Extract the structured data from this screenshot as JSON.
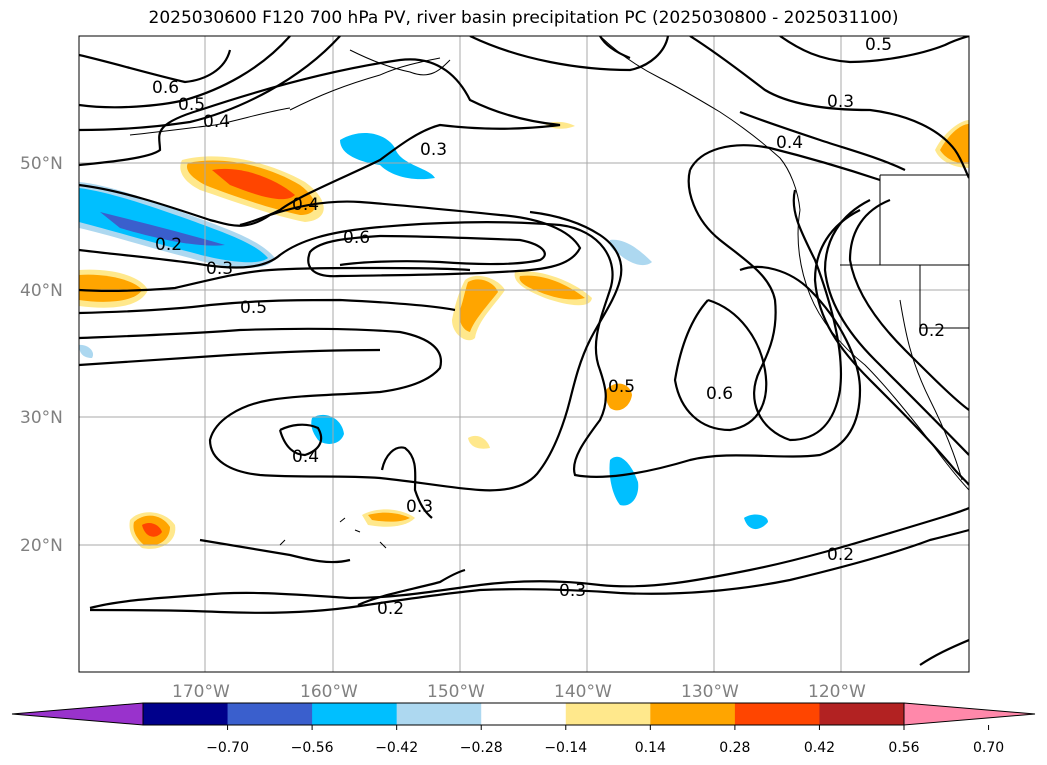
{
  "title": "2025030600 F120 700 hPa PV, river basin precipitation PC (2025030800 - 2025031100)",
  "lat_labels": [
    "50°N",
    "40°N",
    "30°N",
    "20°N"
  ],
  "lon_labels": [
    "170°W",
    "160°W",
    "150°W",
    "140°W",
    "130°W",
    "120°W"
  ],
  "contour_labels": [
    "0.6",
    "0.5",
    "0.4",
    "0.3",
    "0.4",
    "0.2",
    "0.3",
    "0.6",
    "0.5",
    "0.4",
    "0.3",
    "0.5",
    "0.6",
    "0.3",
    "0.3",
    "0.4",
    "0.2",
    "0.2",
    "0.2",
    "0.5"
  ],
  "colorbar": {
    "ticks": [
      "−0.70",
      "−0.56",
      "−0.42",
      "−0.28",
      "−0.14",
      "0.14",
      "0.28",
      "0.42",
      "0.56",
      "0.70"
    ],
    "colors": [
      "#9932cc",
      "#00008b",
      "#3a5fcd",
      "#00bfff",
      "#add8f0",
      "#ffffff",
      "#ffe88c",
      "#ffa500",
      "#ff4500",
      "#b22222",
      "#ff88aa"
    ]
  }
}
